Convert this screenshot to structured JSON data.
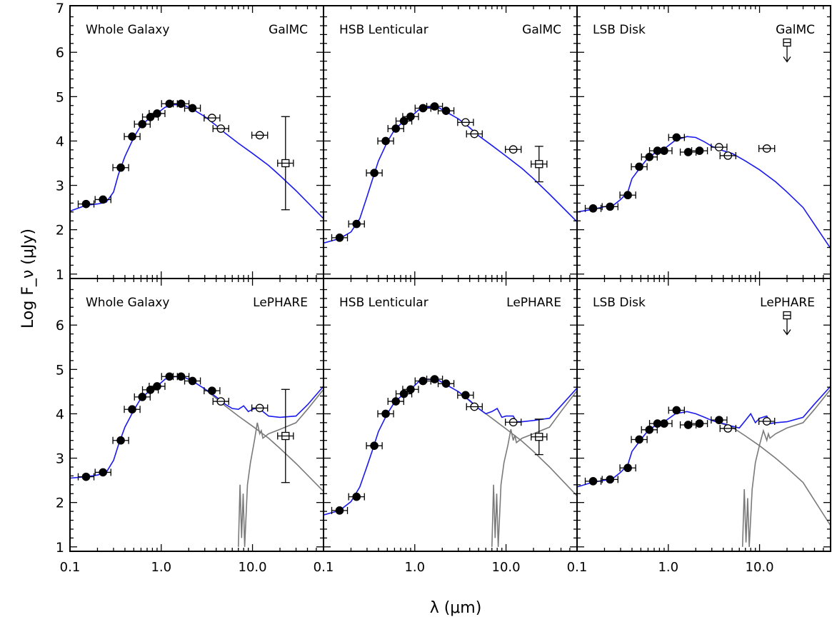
{
  "figure": {
    "xlabel": "λ (μm)",
    "ylabel": "Log F_ν (μJy)",
    "x_ticks": [
      "0.1",
      "1.0",
      "10.0"
    ],
    "y_ticks_top": [
      "1",
      "2",
      "3",
      "4",
      "5",
      "6",
      "7"
    ],
    "y_ticks_bottom": [
      "1",
      "2",
      "3",
      "4",
      "5",
      "6"
    ]
  },
  "colors": {
    "model": "#1a1aee",
    "dust": "#7a7a7a",
    "data": "#000000"
  },
  "chart_data": [
    {
      "type": "line",
      "panel": "top-left",
      "label": "Whole Galaxy",
      "code": "GalMC",
      "xscale": "log",
      "xlim": [
        0.1,
        60
      ],
      "ylim": [
        0.9,
        7.05
      ],
      "measured": [
        [
          0.15,
          2.58
        ],
        [
          0.23,
          2.68
        ],
        [
          0.36,
          3.4
        ],
        [
          0.48,
          4.1
        ],
        [
          0.62,
          4.38
        ],
        [
          0.76,
          4.54
        ],
        [
          0.9,
          4.62
        ],
        [
          1.23,
          4.84
        ],
        [
          1.65,
          4.84
        ],
        [
          2.2,
          4.74
        ]
      ],
      "open": [
        [
          3.6,
          4.52
        ],
        [
          4.5,
          4.28
        ],
        [
          12.0,
          4.13
        ]
      ],
      "errorbars": [
        [
          23.0,
          3.5,
          2.45,
          4.55
        ]
      ],
      "model": [
        [
          0.1,
          2.42
        ],
        [
          0.15,
          2.55
        ],
        [
          0.2,
          2.58
        ],
        [
          0.25,
          2.62
        ],
        [
          0.3,
          2.85
        ],
        [
          0.34,
          3.25
        ],
        [
          0.4,
          3.65
        ],
        [
          0.5,
          4.08
        ],
        [
          0.6,
          4.35
        ],
        [
          0.75,
          4.52
        ],
        [
          0.9,
          4.62
        ],
        [
          1.1,
          4.76
        ],
        [
          1.4,
          4.82
        ],
        [
          1.8,
          4.8
        ],
        [
          2.2,
          4.72
        ],
        [
          3.0,
          4.55
        ],
        [
          4.0,
          4.35
        ],
        [
          5.0,
          4.18
        ],
        [
          7.0,
          3.95
        ],
        [
          10.0,
          3.72
        ],
        [
          15.0,
          3.45
        ],
        [
          20.0,
          3.22
        ],
        [
          30.0,
          2.88
        ],
        [
          60.0,
          2.25
        ]
      ]
    },
    {
      "type": "line",
      "panel": "top-middle",
      "label": "HSB Lenticular",
      "code": "GalMC",
      "xscale": "log",
      "xlim": [
        0.1,
        60
      ],
      "ylim": [
        0.9,
        7.05
      ],
      "measured": [
        [
          0.15,
          1.82
        ],
        [
          0.23,
          2.13
        ],
        [
          0.36,
          3.28
        ],
        [
          0.48,
          4.0
        ],
        [
          0.62,
          4.28
        ],
        [
          0.76,
          4.45
        ],
        [
          0.9,
          4.55
        ],
        [
          1.23,
          4.74
        ],
        [
          1.65,
          4.78
        ],
        [
          2.2,
          4.68
        ]
      ],
      "open": [
        [
          3.6,
          4.42
        ],
        [
          4.5,
          4.16
        ],
        [
          12.0,
          3.81
        ]
      ],
      "errorbars": [
        [
          23.0,
          3.48,
          3.08,
          3.88
        ]
      ],
      "model": [
        [
          0.1,
          1.7
        ],
        [
          0.15,
          1.8
        ],
        [
          0.2,
          1.95
        ],
        [
          0.25,
          2.25
        ],
        [
          0.3,
          2.75
        ],
        [
          0.34,
          3.1
        ],
        [
          0.4,
          3.55
        ],
        [
          0.5,
          3.98
        ],
        [
          0.6,
          4.25
        ],
        [
          0.75,
          4.44
        ],
        [
          0.9,
          4.54
        ],
        [
          1.1,
          4.7
        ],
        [
          1.4,
          4.76
        ],
        [
          1.8,
          4.76
        ],
        [
          2.2,
          4.66
        ],
        [
          3.0,
          4.5
        ],
        [
          4.0,
          4.3
        ],
        [
          5.0,
          4.12
        ],
        [
          7.0,
          3.9
        ],
        [
          10.0,
          3.66
        ],
        [
          15.0,
          3.38
        ],
        [
          20.0,
          3.15
        ],
        [
          30.0,
          2.8
        ],
        [
          60.0,
          2.18
        ]
      ]
    },
    {
      "type": "line",
      "panel": "top-right",
      "label": "LSB Disk",
      "code": "GalMC",
      "xscale": "log",
      "xlim": [
        0.1,
        60
      ],
      "ylim": [
        0.9,
        7.05
      ],
      "measured": [
        [
          0.15,
          2.48
        ],
        [
          0.23,
          2.52
        ],
        [
          0.36,
          2.78
        ],
        [
          0.48,
          3.42
        ],
        [
          0.62,
          3.64
        ],
        [
          0.76,
          3.78
        ],
        [
          0.9,
          3.78
        ],
        [
          1.23,
          4.08
        ],
        [
          1.65,
          3.75
        ],
        [
          2.2,
          3.78
        ]
      ],
      "open": [
        [
          3.6,
          3.86
        ],
        [
          4.5,
          3.67
        ],
        [
          12.0,
          3.83
        ]
      ],
      "upper_limits": [
        [
          20.0,
          6.22
        ]
      ],
      "model": [
        [
          0.1,
          2.4
        ],
        [
          0.15,
          2.46
        ],
        [
          0.2,
          2.52
        ],
        [
          0.25,
          2.55
        ],
        [
          0.3,
          2.68
        ],
        [
          0.36,
          2.85
        ],
        [
          0.4,
          3.15
        ],
        [
          0.5,
          3.42
        ],
        [
          0.6,
          3.62
        ],
        [
          0.75,
          3.76
        ],
        [
          0.9,
          3.82
        ],
        [
          1.2,
          4.02
        ],
        [
          1.6,
          4.1
        ],
        [
          2.0,
          4.08
        ],
        [
          2.5,
          3.98
        ],
        [
          3.0,
          3.88
        ],
        [
          4.0,
          3.78
        ],
        [
          5.0,
          3.72
        ],
        [
          7.0,
          3.55
        ],
        [
          10.0,
          3.35
        ],
        [
          15.0,
          3.08
        ],
        [
          20.0,
          2.85
        ],
        [
          30.0,
          2.5
        ],
        [
          60.0,
          1.58
        ]
      ]
    },
    {
      "type": "line",
      "panel": "bottom-left",
      "label": "Whole Galaxy",
      "code": "LePHARE",
      "xscale": "log",
      "xlim": [
        0.1,
        60
      ],
      "ylim": [
        0.9,
        7.05
      ],
      "measured": [
        [
          0.15,
          2.58
        ],
        [
          0.23,
          2.68
        ],
        [
          0.36,
          3.4
        ],
        [
          0.48,
          4.1
        ],
        [
          0.62,
          4.38
        ],
        [
          0.76,
          4.54
        ],
        [
          0.9,
          4.62
        ],
        [
          1.23,
          4.84
        ],
        [
          1.65,
          4.84
        ],
        [
          2.2,
          4.74
        ],
        [
          3.6,
          4.52
        ]
      ],
      "open": [
        [
          4.5,
          4.28
        ],
        [
          12.0,
          4.13
        ]
      ],
      "errorbars": [
        [
          23.0,
          3.5,
          2.45,
          4.55
        ]
      ],
      "model": [
        [
          0.1,
          2.55
        ],
        [
          0.15,
          2.58
        ],
        [
          0.2,
          2.62
        ],
        [
          0.25,
          2.68
        ],
        [
          0.3,
          2.95
        ],
        [
          0.34,
          3.3
        ],
        [
          0.4,
          3.7
        ],
        [
          0.5,
          4.08
        ],
        [
          0.6,
          4.35
        ],
        [
          0.75,
          4.52
        ],
        [
          0.9,
          4.62
        ],
        [
          1.1,
          4.78
        ],
        [
          1.4,
          4.84
        ],
        [
          1.8,
          4.82
        ],
        [
          2.2,
          4.74
        ],
        [
          3.0,
          4.56
        ],
        [
          4.0,
          4.38
        ],
        [
          5.0,
          4.22
        ],
        [
          6.0,
          4.12
        ],
        [
          7.0,
          4.1
        ],
        [
          8.0,
          4.18
        ],
        [
          9.0,
          4.05
        ],
        [
          10.0,
          4.1
        ],
        [
          12.0,
          4.15
        ],
        [
          13.0,
          4.05
        ],
        [
          15.0,
          3.95
        ],
        [
          20.0,
          3.92
        ],
        [
          30.0,
          3.95
        ],
        [
          40.0,
          4.2
        ],
        [
          60.0,
          4.62
        ]
      ],
      "stellar": [
        [
          3.0,
          4.56
        ],
        [
          5.0,
          4.18
        ],
        [
          7.0,
          3.95
        ],
        [
          10.0,
          3.72
        ],
        [
          15.0,
          3.45
        ],
        [
          20.0,
          3.22
        ],
        [
          30.0,
          2.88
        ],
        [
          60.0,
          2.25
        ]
      ],
      "dust": [
        [
          7.0,
          1.0
        ],
        [
          7.3,
          2.4
        ],
        [
          7.6,
          1.2
        ],
        [
          7.9,
          2.2
        ],
        [
          8.2,
          1.0
        ],
        [
          8.8,
          2.4
        ],
        [
          9.5,
          2.9
        ],
        [
          10.5,
          3.4
        ],
        [
          11.3,
          3.8
        ],
        [
          12.0,
          3.55
        ],
        [
          12.5,
          3.62
        ],
        [
          13.0,
          3.45
        ],
        [
          15.0,
          3.55
        ],
        [
          20.0,
          3.65
        ],
        [
          30.0,
          3.8
        ],
        [
          40.0,
          4.1
        ],
        [
          60.0,
          4.55
        ]
      ]
    },
    {
      "type": "line",
      "panel": "bottom-middle",
      "label": "HSB Lenticular",
      "code": "LePHARE",
      "xscale": "log",
      "xlim": [
        0.1,
        60
      ],
      "ylim": [
        0.9,
        7.05
      ],
      "measured": [
        [
          0.15,
          1.82
        ],
        [
          0.23,
          2.13
        ],
        [
          0.36,
          3.28
        ],
        [
          0.48,
          4.0
        ],
        [
          0.62,
          4.28
        ],
        [
          0.76,
          4.45
        ],
        [
          0.9,
          4.55
        ],
        [
          1.23,
          4.74
        ],
        [
          1.65,
          4.78
        ],
        [
          2.2,
          4.68
        ],
        [
          3.6,
          4.42
        ]
      ],
      "open": [
        [
          4.5,
          4.16
        ],
        [
          12.0,
          3.81
        ]
      ],
      "errorbars": [
        [
          23.0,
          3.48,
          3.08,
          3.88
        ]
      ],
      "model": [
        [
          0.1,
          1.72
        ],
        [
          0.15,
          1.82
        ],
        [
          0.2,
          2.02
        ],
        [
          0.25,
          2.35
        ],
        [
          0.3,
          2.82
        ],
        [
          0.34,
          3.15
        ],
        [
          0.4,
          3.6
        ],
        [
          0.5,
          4.0
        ],
        [
          0.6,
          4.26
        ],
        [
          0.75,
          4.44
        ],
        [
          0.9,
          4.55
        ],
        [
          1.1,
          4.72
        ],
        [
          1.4,
          4.78
        ],
        [
          1.8,
          4.76
        ],
        [
          2.2,
          4.66
        ],
        [
          3.0,
          4.5
        ],
        [
          4.0,
          4.3
        ],
        [
          5.0,
          4.12
        ],
        [
          6.0,
          4.0
        ],
        [
          7.0,
          4.05
        ],
        [
          8.0,
          4.12
        ],
        [
          9.0,
          3.92
        ],
        [
          10.0,
          3.95
        ],
        [
          12.0,
          3.95
        ],
        [
          13.0,
          3.82
        ],
        [
          15.0,
          3.82
        ],
        [
          20.0,
          3.85
        ],
        [
          30.0,
          3.9
        ],
        [
          40.0,
          4.18
        ],
        [
          60.0,
          4.58
        ]
      ],
      "stellar": [
        [
          3.0,
          4.5
        ],
        [
          5.0,
          4.12
        ],
        [
          7.0,
          3.9
        ],
        [
          10.0,
          3.66
        ],
        [
          15.0,
          3.38
        ],
        [
          20.0,
          3.15
        ],
        [
          30.0,
          2.8
        ],
        [
          60.0,
          2.15
        ]
      ],
      "dust": [
        [
          7.0,
          1.0
        ],
        [
          7.3,
          2.4
        ],
        [
          7.6,
          1.2
        ],
        [
          7.9,
          2.2
        ],
        [
          8.2,
          1.0
        ],
        [
          8.8,
          2.4
        ],
        [
          9.5,
          2.9
        ],
        [
          10.5,
          3.3
        ],
        [
          11.3,
          3.65
        ],
        [
          12.0,
          3.4
        ],
        [
          12.5,
          3.52
        ],
        [
          13.0,
          3.35
        ],
        [
          15.0,
          3.45
        ],
        [
          20.0,
          3.55
        ],
        [
          30.0,
          3.7
        ],
        [
          40.0,
          4.05
        ],
        [
          60.0,
          4.52
        ]
      ]
    },
    {
      "type": "line",
      "panel": "bottom-right",
      "label": "LSB Disk",
      "code": "LePHARE",
      "xscale": "log",
      "xlim": [
        0.1,
        60
      ],
      "ylim": [
        0.9,
        7.05
      ],
      "measured": [
        [
          0.15,
          2.48
        ],
        [
          0.23,
          2.52
        ],
        [
          0.36,
          2.78
        ],
        [
          0.48,
          3.42
        ],
        [
          0.62,
          3.64
        ],
        [
          0.76,
          3.78
        ],
        [
          0.9,
          3.78
        ],
        [
          1.23,
          4.08
        ],
        [
          1.65,
          3.75
        ],
        [
          2.2,
          3.78
        ],
        [
          3.6,
          3.86
        ]
      ],
      "open": [
        [
          4.5,
          3.67
        ],
        [
          12.0,
          3.83
        ]
      ],
      "upper_limits": [
        [
          20.0,
          6.22
        ]
      ],
      "model": [
        [
          0.1,
          2.35
        ],
        [
          0.15,
          2.46
        ],
        [
          0.2,
          2.5
        ],
        [
          0.25,
          2.55
        ],
        [
          0.3,
          2.68
        ],
        [
          0.36,
          2.85
        ],
        [
          0.4,
          3.15
        ],
        [
          0.5,
          3.42
        ],
        [
          0.6,
          3.62
        ],
        [
          0.75,
          3.76
        ],
        [
          0.9,
          3.82
        ],
        [
          1.2,
          4.0
        ],
        [
          1.6,
          4.05
        ],
        [
          2.0,
          4.0
        ],
        [
          2.5,
          3.92
        ],
        [
          3.0,
          3.85
        ],
        [
          4.0,
          3.78
        ],
        [
          5.0,
          3.72
        ],
        [
          6.0,
          3.68
        ],
        [
          7.0,
          3.85
        ],
        [
          8.0,
          4.0
        ],
        [
          9.0,
          3.8
        ],
        [
          10.0,
          3.9
        ],
        [
          12.0,
          3.95
        ],
        [
          13.0,
          3.78
        ],
        [
          15.0,
          3.8
        ],
        [
          20.0,
          3.82
        ],
        [
          30.0,
          3.92
        ],
        [
          40.0,
          4.22
        ],
        [
          60.0,
          4.62
        ]
      ],
      "stellar": [
        [
          3.0,
          3.85
        ],
        [
          5.0,
          3.7
        ],
        [
          7.0,
          3.5
        ],
        [
          10.0,
          3.28
        ],
        [
          15.0,
          3.0
        ],
        [
          20.0,
          2.78
        ],
        [
          30.0,
          2.45
        ],
        [
          60.0,
          1.48
        ]
      ],
      "dust": [
        [
          6.5,
          1.0
        ],
        [
          6.8,
          2.3
        ],
        [
          7.1,
          1.1
        ],
        [
          7.4,
          2.1
        ],
        [
          7.7,
          1.0
        ],
        [
          8.3,
          2.3
        ],
        [
          9.0,
          2.9
        ],
        [
          10.0,
          3.3
        ],
        [
          11.0,
          3.62
        ],
        [
          12.0,
          3.4
        ],
        [
          12.5,
          3.55
        ],
        [
          13.0,
          3.45
        ],
        [
          15.0,
          3.55
        ],
        [
          20.0,
          3.68
        ],
        [
          30.0,
          3.8
        ],
        [
          40.0,
          4.1
        ],
        [
          60.0,
          4.55
        ]
      ]
    }
  ]
}
